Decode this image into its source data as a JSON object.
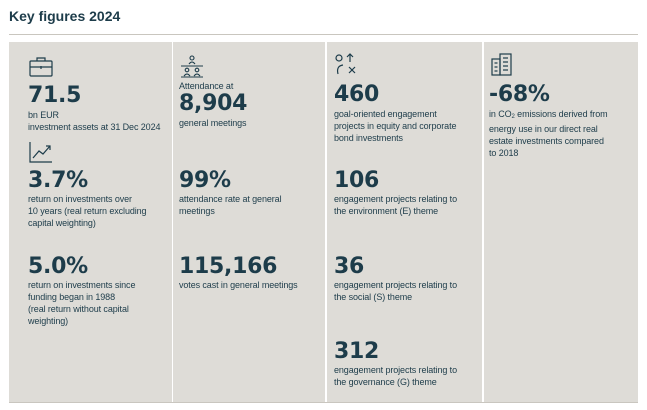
{
  "title": "Key figures 2024",
  "col1": {
    "assets": {
      "value": "71.5",
      "unit": "bn EUR",
      "label": "investment assets at 31 Dec 2024"
    },
    "return10": {
      "value": "3.7%",
      "label": "return on investments over\n10 years (real return excluding\ncapital weighting)"
    },
    "return_since": {
      "value": "5.0%",
      "label": "return on investments since\nfunding began in 1988\n(real return without capital\nweighting)"
    }
  },
  "col2": {
    "attendance": {
      "prefix": "Attendance at",
      "value": "8,904",
      "label": "general meetings"
    },
    "rate": {
      "value": "99%",
      "label": "attendance rate at general\nmeetings"
    },
    "votes": {
      "value": "115,166",
      "label": "votes cast in general meetings"
    }
  },
  "col3": {
    "engagement": {
      "value": "460",
      "label": "goal-oriented engagement\nprojects in equity and corporate\nbond investments"
    },
    "env": {
      "value": "106",
      "label": "engagement projects relating to\nthe environment (E) theme"
    },
    "social": {
      "value": "36",
      "label": "engagement projects relating to\nthe social (S) theme"
    },
    "gov": {
      "value": "312",
      "label": "engagement projects relating to\nthe governance (G) theme"
    }
  },
  "col4": {
    "co2": {
      "value": "-68%",
      "label_pre": "in CO",
      "label_sub": "2",
      "label_post": " emissions derived from\nenergy use in our direct real\nestate investments compared\nto 2018"
    }
  },
  "icons": {
    "briefcase": "briefcase-icon",
    "trend": "trend-up-icon",
    "meeting": "meeting-icon",
    "engagement": "engagement-icon",
    "building": "building-icon"
  },
  "colors": {
    "text": "#1d3c4a",
    "panel": "#dedcd7",
    "rule": "#c9c6bf"
  }
}
